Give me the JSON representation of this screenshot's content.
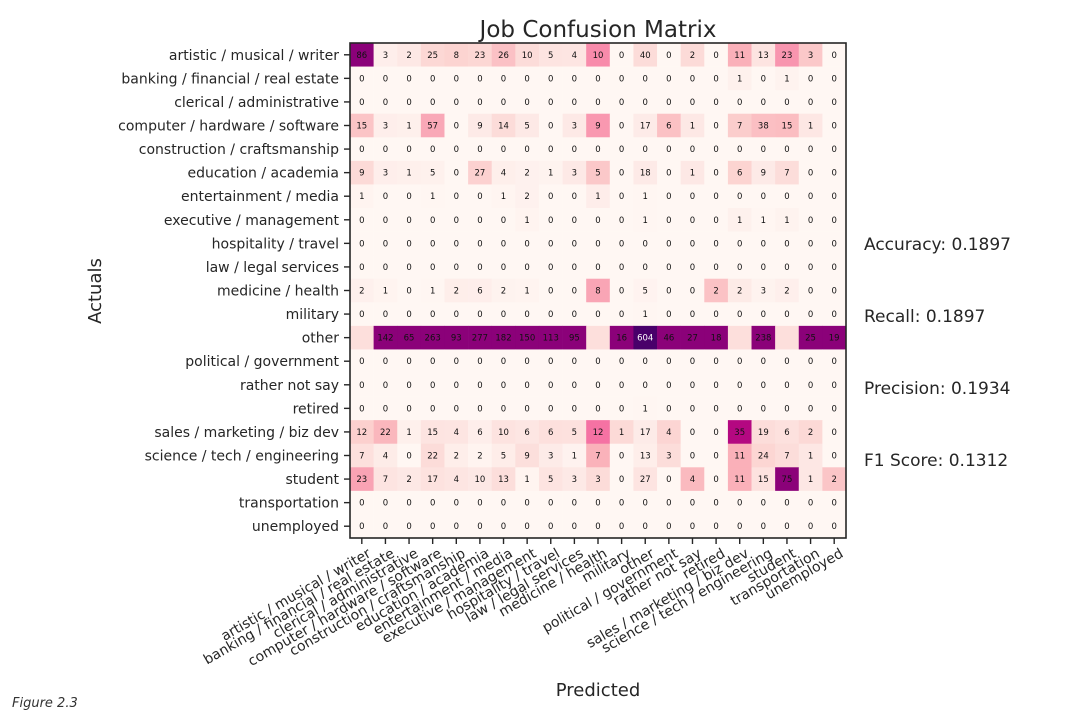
{
  "chart_data": {
    "type": "heatmap",
    "title": "Job Confusion Matrix",
    "xlabel": "Predicted",
    "ylabel": "Actuals",
    "categories": [
      "artistic / musical / writer",
      "banking / financial / real estate",
      "clerical / administrative",
      "computer / hardware / software",
      "construction / craftsmanship",
      "education / academia",
      "entertainment / media",
      "executive / management",
      "hospitality / travel",
      "law / legal services",
      "medicine / health",
      "military",
      "other",
      "political / government",
      "rather not say",
      "retired",
      "sales / marketing / biz dev",
      "science / tech / engineering",
      "student",
      "transportation",
      "unemployed"
    ],
    "matrix": [
      [
        86,
        3,
        2,
        25,
        8,
        23,
        26,
        10,
        5,
        4,
        10,
        0,
        40,
        0,
        2,
        0,
        11,
        13,
        23,
        3,
        0
      ],
      [
        0,
        0,
        0,
        0,
        0,
        0,
        0,
        0,
        0,
        0,
        0,
        0,
        0,
        0,
        0,
        0,
        1,
        0,
        1,
        0,
        0
      ],
      [
        0,
        0,
        0,
        0,
        0,
        0,
        0,
        0,
        0,
        0,
        0,
        0,
        0,
        0,
        0,
        0,
        0,
        0,
        0,
        0,
        0
      ],
      [
        15,
        3,
        1,
        57,
        0,
        9,
        14,
        5,
        0,
        3,
        9,
        0,
        17,
        6,
        1,
        0,
        7,
        38,
        15,
        1,
        0
      ],
      [
        0,
        0,
        0,
        0,
        0,
        0,
        0,
        0,
        0,
        0,
        0,
        0,
        0,
        0,
        0,
        0,
        0,
        0,
        0,
        0,
        0
      ],
      [
        9,
        3,
        1,
        5,
        0,
        27,
        4,
        2,
        1,
        3,
        5,
        0,
        18,
        0,
        1,
        0,
        6,
        9,
        7,
        0,
        0
      ],
      [
        1,
        0,
        0,
        1,
        0,
        0,
        1,
        2,
        0,
        0,
        1,
        0,
        1,
        0,
        0,
        0,
        0,
        0,
        0,
        0,
        0
      ],
      [
        0,
        0,
        0,
        0,
        0,
        0,
        0,
        1,
        0,
        0,
        0,
        0,
        1,
        0,
        0,
        0,
        1,
        1,
        1,
        0,
        0
      ],
      [
        0,
        0,
        0,
        0,
        0,
        0,
        0,
        0,
        0,
        0,
        0,
        0,
        0,
        0,
        0,
        0,
        0,
        0,
        0,
        0,
        0
      ],
      [
        0,
        0,
        0,
        0,
        0,
        0,
        0,
        0,
        0,
        0,
        0,
        0,
        0,
        0,
        0,
        0,
        0,
        0,
        0,
        0,
        0
      ],
      [
        2,
        1,
        0,
        1,
        2,
        6,
        2,
        1,
        0,
        0,
        8,
        0,
        5,
        0,
        0,
        2,
        2,
        3,
        2,
        0,
        0
      ],
      [
        0,
        0,
        0,
        0,
        0,
        0,
        0,
        0,
        0,
        0,
        0,
        0,
        1,
        0,
        0,
        0,
        0,
        0,
        0,
        0,
        0
      ],
      [
        null,
        142,
        65,
        263,
        93,
        277,
        182,
        150,
        113,
        95,
        null,
        16,
        604,
        46,
        27,
        18,
        null,
        238,
        null,
        25,
        19
      ],
      [
        0,
        0,
        0,
        0,
        0,
        0,
        0,
        0,
        0,
        0,
        0,
        0,
        0,
        0,
        0,
        0,
        0,
        0,
        0,
        0,
        0
      ],
      [
        0,
        0,
        0,
        0,
        0,
        0,
        0,
        0,
        0,
        0,
        0,
        0,
        0,
        0,
        0,
        0,
        0,
        0,
        0,
        0,
        0
      ],
      [
        0,
        0,
        0,
        0,
        0,
        0,
        0,
        0,
        0,
        0,
        0,
        0,
        1,
        0,
        0,
        0,
        0,
        0,
        0,
        0,
        0
      ],
      [
        12,
        22,
        1,
        15,
        4,
        6,
        10,
        6,
        6,
        5,
        12,
        1,
        17,
        4,
        0,
        0,
        35,
        19,
        6,
        2,
        0
      ],
      [
        7,
        4,
        0,
        22,
        2,
        2,
        5,
        9,
        3,
        1,
        7,
        0,
        13,
        3,
        0,
        0,
        11,
        24,
        7,
        1,
        0
      ],
      [
        23,
        7,
        2,
        17,
        4,
        10,
        13,
        1,
        5,
        3,
        3,
        0,
        27,
        0,
        4,
        0,
        11,
        15,
        75,
        1,
        2
      ],
      [
        0,
        0,
        0,
        0,
        0,
        0,
        0,
        0,
        0,
        0,
        0,
        0,
        0,
        0,
        0,
        0,
        0,
        0,
        0,
        0,
        0
      ],
      [
        0,
        0,
        0,
        0,
        0,
        0,
        0,
        0,
        0,
        0,
        0,
        0,
        0,
        0,
        0,
        0,
        0,
        0,
        0,
        0,
        0
      ]
    ],
    "color_scale": {
      "scale": "sequential RdPu",
      "low_color": "#fff7f3",
      "high_color": "#49006a",
      "vmax": 604
    },
    "grid": false,
    "legend": "none"
  },
  "metrics": {
    "accuracy": "Accuracy: 0.1897",
    "recall": "Recall: 0.1897",
    "precision": "Precision: 0.1934",
    "f1": "F1 Score: 0.1312"
  },
  "caption": "Figure 2.3"
}
